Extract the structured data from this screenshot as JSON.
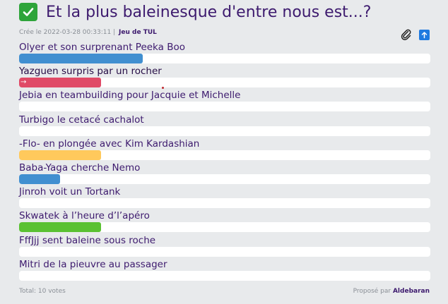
{
  "poll": {
    "title": "Et la plus baleinesque d'entre nous est...?",
    "created_prefix": "Crée le",
    "created_at": "2022-03-28 00:33:11",
    "separator": "|",
    "game": "Jeu de TUL",
    "total_votes": "Total: 10 votes",
    "proposed_by_label": "Proposé par",
    "proposer": "Aldebaran"
  },
  "icons": {
    "status": "check-icon",
    "attach": "paperclip-icon",
    "export": "upload-arrow-icon"
  },
  "colors": {
    "title": "#3d1a6e",
    "check": "#2ea43a",
    "blue": "#418fd0",
    "red": "#e04a67",
    "yellow": "#ffc95c",
    "green": "#5ac132"
  },
  "options": [
    {
      "label": "Olyer et son surprenant Peeka Boo",
      "votes": 3,
      "share": 0.3,
      "color": "#418fd0"
    },
    {
      "label": "Yazguen surpris par un rocher",
      "votes": 2,
      "share": 0.2,
      "color": "#e04a67",
      "selected": true
    },
    {
      "label": "Jebia en teambuilding pour Jacquie et Michelle",
      "votes": 0,
      "share": 0,
      "color": "#418fd0"
    },
    {
      "label": "Turbigo le cetacé cachalot",
      "votes": 0,
      "share": 0,
      "color": "#418fd0"
    },
    {
      "label": "-Flo- en plongée avec Kim Kardashian",
      "votes": 2,
      "share": 0.2,
      "color": "#ffc95c"
    },
    {
      "label": "Baba-Yaga cherche Nemo",
      "votes": 1,
      "share": 0.1,
      "color": "#418fd0"
    },
    {
      "label": "Jinroh voit un Tortank",
      "votes": 0,
      "share": 0,
      "color": "#418fd0"
    },
    {
      "label": "Skwatek à l’heure d’l’apéro",
      "votes": 2,
      "share": 0.2,
      "color": "#5ac132"
    },
    {
      "label": "FffJjj sent baleine sous roche",
      "votes": 0,
      "share": 0,
      "color": "#418fd0"
    },
    {
      "label": "Mitri de la pieuvre au passager",
      "votes": 0,
      "share": 0,
      "color": "#418fd0"
    }
  ]
}
